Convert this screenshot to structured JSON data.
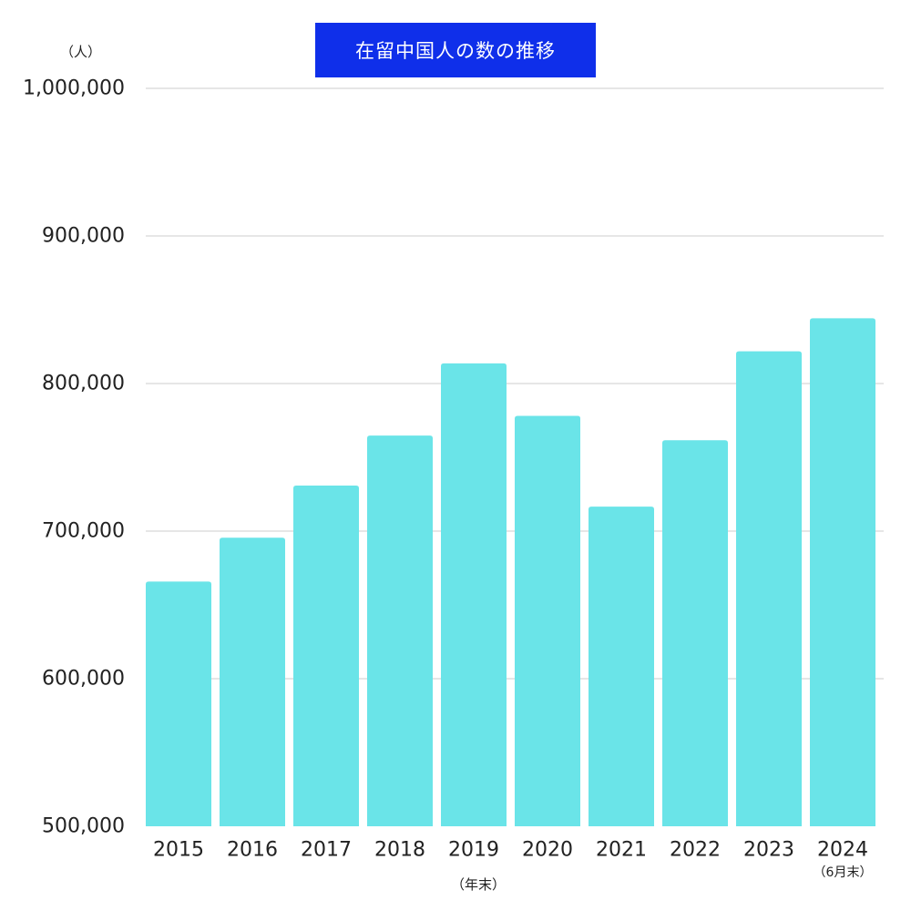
{
  "colors": {
    "bar": "#6ae4e8",
    "title_bg": "#0f2fea",
    "grid": "#cccccc"
  },
  "chart_data": {
    "type": "bar",
    "title": "在留中国人の数の推移",
    "ylabel": "（人）",
    "xlabel": "（年末）",
    "ylim": [
      500000,
      1000000
    ],
    "yticks": [
      500000,
      600000,
      700000,
      800000,
      900000,
      1000000
    ],
    "ytick_labels": [
      "500,000",
      "600,000",
      "700,000",
      "800,000",
      "900,000",
      "1,000,000"
    ],
    "categories": [
      "2015",
      "2016",
      "2017",
      "2018",
      "2019",
      "2020",
      "2021",
      "2022",
      "2023",
      "2024"
    ],
    "category_notes": [
      "",
      "",
      "",
      "",
      "",
      "",
      "",
      "",
      "",
      "（6月末）"
    ],
    "values": [
      665847,
      695522,
      730890,
      764720,
      813675,
      778112,
      716606,
      761563,
      821838,
      844187
    ],
    "grid": true,
    "legend": "none"
  }
}
